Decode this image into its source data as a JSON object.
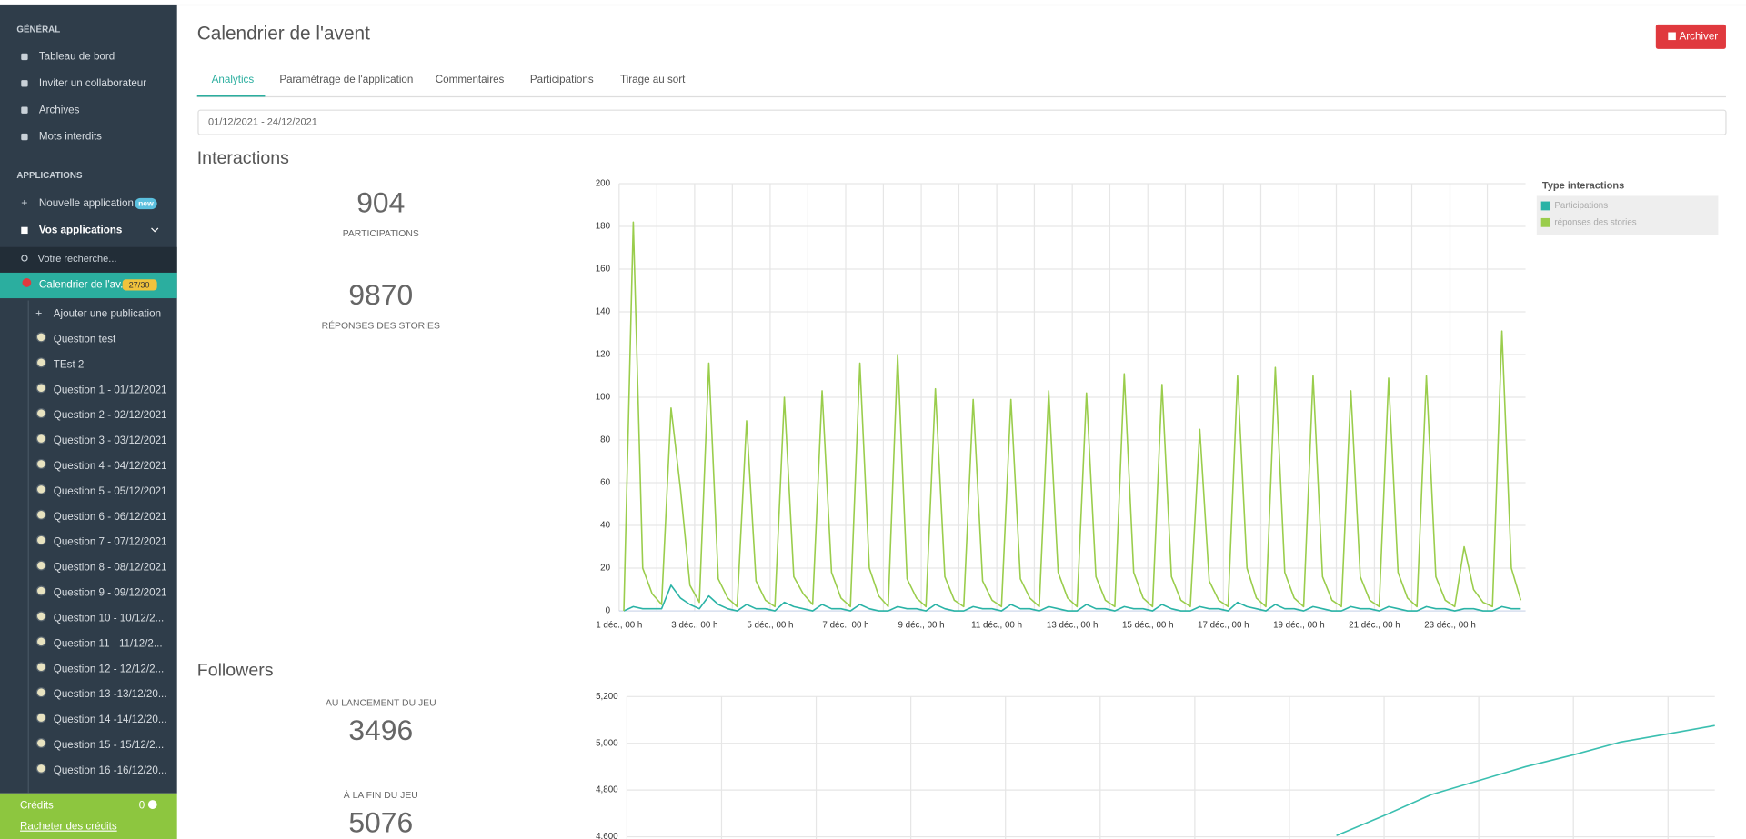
{
  "sidebar": {
    "general_title": "GÉNÉRAL",
    "general_items": [
      "Tableau de bord",
      "Inviter un collaborateur",
      "Archives",
      "Mots interdits"
    ],
    "apps_title": "APPLICATIONS",
    "new_app": "Nouvelle application",
    "new_badge": "new",
    "my_apps": "Vos applications",
    "search_placeholder": "Votre recherche...",
    "active_app": "Calendrier de l'av...",
    "active_badge": "27/30",
    "add_publication": "Ajouter une publication",
    "sub_items": [
      "Question test",
      "TEst 2",
      "Question 1 - 01/12/2021",
      "Question 2 - 02/12/2021",
      "Question 3 - 03/12/2021",
      "Question 4 - 04/12/2021",
      "Question 5 - 05/12/2021",
      "Question 6 - 06/12/2021",
      "Question 7 - 07/12/2021",
      "Question 8 - 08/12/2021",
      "Question 9 - 09/12/2021",
      "Question 10 - 10/12/2...",
      "Question 11 - 11/12/2...",
      "Question 12 - 12/12/2...",
      "Question 13 -13/12/20...",
      "Question 14 -14/12/20...",
      "Question 15 - 15/12/2...",
      "Question 16 -16/12/20..."
    ],
    "credits_label": "Crédits",
    "credits_value": 0,
    "buy_credits": "Racheter des crédits"
  },
  "header": {
    "title": "Calendrier de l'avent",
    "archive_button": "Archiver"
  },
  "tabs": [
    "Analytics",
    "Paramétrage de l'application",
    "Commentaires",
    "Participations",
    "Tirage au sort"
  ],
  "date_range": "01/12/2021 - 24/12/2021",
  "interactions": {
    "title": "Interactions",
    "stats": [
      {
        "value": 904,
        "label": "PARTICIPATIONS"
      },
      {
        "value": 9870,
        "label": "RÉPONSES DES STORIES"
      }
    ]
  },
  "followers": {
    "title": "Followers",
    "stats": [
      {
        "label": "AU LANCEMENT DU JEU",
        "value": 3496
      },
      {
        "label": "À LA FIN DU JEU",
        "value": 5076
      }
    ]
  },
  "chart_data": [
    {
      "type": "line",
      "legend_title": "Type interactions",
      "x": [
        3,
        9,
        15,
        21,
        27,
        33,
        39,
        45,
        51,
        57,
        63,
        69,
        75,
        81,
        87,
        93,
        99,
        105,
        111,
        117,
        123,
        129,
        135,
        141,
        147,
        153,
        159,
        165,
        171,
        177,
        183,
        189,
        195,
        201,
        207,
        213,
        219,
        225,
        231,
        237,
        243,
        249,
        255,
        261,
        267,
        273,
        279,
        285,
        291,
        297,
        303,
        309,
        315,
        321,
        327,
        333,
        339,
        345,
        351,
        357,
        363,
        369,
        375,
        381,
        387,
        393,
        399,
        405,
        411,
        417,
        423,
        429,
        435,
        441,
        447,
        453,
        459,
        465,
        471,
        477,
        483,
        489,
        495,
        501,
        507,
        513,
        519,
        525,
        531,
        537,
        543,
        549,
        555,
        561,
        567,
        573
      ],
      "series": [
        {
          "name": "Participations",
          "color": "#2ab3a6",
          "values": [
            0,
            2,
            1,
            1,
            1,
            12,
            6,
            3,
            1,
            7,
            3,
            1,
            0,
            3,
            1,
            1,
            0,
            4,
            2,
            1,
            0,
            3,
            1,
            1,
            0,
            3,
            1,
            0,
            0,
            2,
            1,
            1,
            0,
            3,
            1,
            0,
            0,
            2,
            1,
            1,
            0,
            3,
            1,
            1,
            0,
            2,
            1,
            0,
            0,
            3,
            1,
            1,
            0,
            2,
            1,
            1,
            0,
            3,
            1,
            0,
            0,
            2,
            1,
            1,
            0,
            4,
            2,
            1,
            0,
            3,
            1,
            1,
            0,
            2,
            1,
            0,
            0,
            2,
            1,
            1,
            0,
            2,
            1,
            0,
            0,
            2,
            1,
            1,
            0,
            1,
            1,
            0,
            0,
            2,
            1,
            1
          ]
        },
        {
          "name": "réponses des stories",
          "color": "#9acd4c",
          "values": [
            0,
            182,
            20,
            8,
            3,
            95,
            57,
            12,
            4,
            116,
            15,
            6,
            2,
            89,
            14,
            5,
            2,
            100,
            16,
            8,
            3,
            103,
            18,
            6,
            2,
            116,
            20,
            7,
            2,
            120,
            15,
            6,
            2,
            104,
            16,
            5,
            2,
            99,
            14,
            5,
            2,
            99,
            15,
            6,
            2,
            103,
            18,
            6,
            2,
            102,
            16,
            5,
            2,
            111,
            18,
            6,
            2,
            106,
            16,
            5,
            2,
            85,
            14,
            5,
            2,
            110,
            20,
            6,
            2,
            114,
            18,
            6,
            2,
            110,
            16,
            5,
            2,
            103,
            16,
            5,
            2,
            109,
            18,
            6,
            2,
            110,
            16,
            5,
            2,
            30,
            10,
            4,
            2,
            131,
            20,
            5
          ]
        }
      ],
      "xlim": [
        0,
        576
      ],
      "xticks": [
        {
          "value": 0,
          "label": "1 déc., 00 h"
        },
        {
          "value": 48,
          "label": "3 déc., 00 h"
        },
        {
          "value": 96,
          "label": "5 déc., 00 h"
        },
        {
          "value": 144,
          "label": "7 déc., 00 h"
        },
        {
          "value": 192,
          "label": "9 déc., 00 h"
        },
        {
          "value": 240,
          "label": "11 déc., 00 h"
        },
        {
          "value": 288,
          "label": "13 déc., 00 h"
        },
        {
          "value": 336,
          "label": "15 déc., 00 h"
        },
        {
          "value": 384,
          "label": "17 déc., 00 h"
        },
        {
          "value": 432,
          "label": "19 déc., 00 h"
        },
        {
          "value": 480,
          "label": "21 déc., 00 h"
        },
        {
          "value": 528,
          "label": "23 déc., 00 h"
        }
      ],
      "ylim": [
        0,
        200
      ],
      "yticks": [
        0,
        20,
        40,
        60,
        80,
        100,
        120,
        140,
        160,
        180,
        200
      ],
      "grid": true
    },
    {
      "type": "line",
      "x": [
        7.5,
        8,
        8.5,
        9,
        9.5,
        10,
        10.5,
        11,
        11.5
      ],
      "series": [
        {
          "color": "#3bbfb0",
          "values": [
            4605,
            4690,
            4780,
            4840,
            4900,
            4950,
            5005,
            5040,
            5076
          ]
        }
      ],
      "xlim": [
        0,
        11.5
      ],
      "ylim": [
        4600,
        5200
      ],
      "yticks": [
        {
          "value": 4600,
          "label": "4,600"
        },
        {
          "value": 4800,
          "label": "4,800"
        },
        {
          "value": 5000,
          "label": "5,000"
        },
        {
          "value": 5200,
          "label": "5,200"
        }
      ],
      "grid": true
    }
  ]
}
